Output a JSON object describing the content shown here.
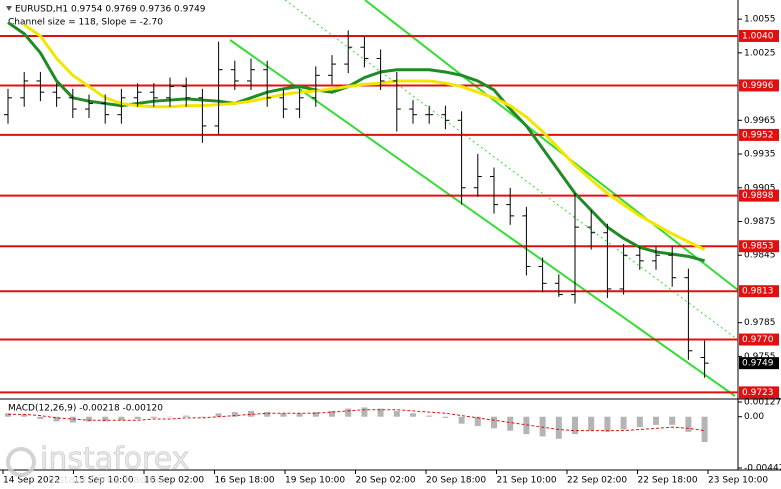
{
  "chart_data": [
    {
      "type": "ohlc",
      "title": "EURUSD,H1  0.9754 0.9769 0.9736 0.9749",
      "subtitle": "Channel size = 118, Slope = -2.70",
      "open": [
        0.997,
        0.9985,
        1.0,
        0.999,
        0.9985,
        0.9975,
        0.998,
        0.997,
        0.9985,
        0.999,
        0.9985,
        0.9995,
        0.9985,
        0.996,
        1.001,
        1.0,
        1.001,
        0.9985,
        0.9975,
        0.9985,
        1.0005,
        1.0015,
        1.003,
        1.002,
        1.0,
        0.9975,
        0.997,
        0.997,
        0.9965,
        0.9905,
        0.9915,
        0.989,
        0.988,
        0.9835,
        0.982,
        0.981,
        0.987,
        0.9865,
        0.9815,
        0.9845,
        0.984,
        0.9845,
        0.9825,
        0.9754
      ],
      "high": [
        0.9993,
        1.0008,
        1.0008,
        0.9998,
        0.9993,
        0.9988,
        0.9988,
        0.9993,
        0.9998,
        0.9998,
        1.0003,
        1.0003,
        0.9993,
        1.0035,
        1.0018,
        1.002,
        1.0018,
        0.9993,
        0.9993,
        1.0013,
        1.0023,
        1.0045,
        1.004,
        1.0028,
        1.0008,
        0.9983,
        0.9978,
        0.9978,
        0.9973,
        0.9935,
        0.9923,
        0.9905,
        0.9888,
        0.9843,
        0.9828,
        0.99,
        0.9885,
        0.9873,
        0.9855,
        0.9853,
        0.9853,
        0.9853,
        0.9833,
        0.9769
      ],
      "low": [
        0.9962,
        0.9977,
        0.9982,
        0.9977,
        0.9967,
        0.9967,
        0.9962,
        0.9962,
        0.9977,
        0.9977,
        0.9977,
        0.9977,
        0.9945,
        0.9952,
        0.9992,
        0.9992,
        0.9977,
        0.9967,
        0.9967,
        0.9977,
        0.9997,
        1.0007,
        1.0012,
        0.9992,
        0.9955,
        0.9962,
        0.9962,
        0.9957,
        0.989,
        0.9897,
        0.9882,
        0.9872,
        0.9827,
        0.9812,
        0.9808,
        0.9802,
        0.985,
        0.9807,
        0.981,
        0.9832,
        0.9832,
        0.9817,
        0.9752,
        0.9736
      ],
      "close": [
        0.9985,
        1.0,
        0.999,
        0.9985,
        0.9975,
        0.998,
        0.997,
        0.9985,
        0.999,
        0.9985,
        0.9995,
        0.9985,
        0.996,
        1.001,
        1.0,
        1.001,
        0.9985,
        0.9975,
        0.9985,
        1.0005,
        1.0015,
        1.003,
        1.002,
        1.0,
        0.9975,
        0.997,
        0.997,
        0.9965,
        0.9905,
        0.9915,
        0.989,
        0.988,
        0.9835,
        0.982,
        0.981,
        0.987,
        0.9865,
        0.9815,
        0.9845,
        0.984,
        0.9845,
        0.9825,
        0.976,
        0.9749
      ],
      "color": "#000000",
      "moving_averages": [
        {
          "color": "#1f8b24",
          "values": [
            1.0052,
            1.0042,
            1.0025,
            1.0,
            0.9985,
            0.9982,
            0.998,
            0.9978,
            0.998,
            0.9982,
            0.9983,
            0.9984,
            0.9983,
            0.9982,
            0.998,
            0.9985,
            0.999,
            0.9993,
            0.9995,
            0.9992,
            0.999,
            0.9995,
            1.0003,
            1.0008,
            1.001,
            1.001,
            1.001,
            1.0008,
            1.0005,
            1.0,
            0.9992,
            0.9975,
            0.996,
            0.994,
            0.992,
            0.99,
            0.9885,
            0.987,
            0.986,
            0.9852,
            0.9848,
            0.9846,
            0.9844,
            0.984
          ]
        },
        {
          "color": "#f2e600",
          "values": [
            null,
            1.005,
            1.004,
            1.002,
            1.0005,
            0.9995,
            0.9985,
            0.998,
            0.9978,
            0.9977,
            0.9977,
            0.9978,
            0.9978,
            0.9979,
            0.998,
            0.9982,
            0.9985,
            0.9988,
            0.999,
            0.9991,
            0.9993,
            0.9995,
            0.9997,
            0.9998,
            1.0,
            1.0,
            1.0,
            0.9998,
            0.9995,
            0.999,
            0.9985,
            0.9978,
            0.9968,
            0.9955,
            0.994,
            0.9925,
            0.9912,
            0.99,
            0.989,
            0.988,
            0.9872,
            0.9864,
            0.9857,
            0.985
          ]
        }
      ],
      "levels": [
        {
          "value": 1.004,
          "label": "1.0040"
        },
        0.9996,
        0.9952,
        0.9898,
        0.9853,
        0.9813,
        {
          "value": 0.977,
          "label": "0.9770"
        },
        0.9723
      ],
      "level_color": "#e01010",
      "last_price": 0.9749,
      "ylim": [
        0.9718,
        1.0072
      ],
      "yticks": [
        1.0055,
        1.0025,
        0.9965,
        0.9935,
        0.9905,
        0.9875,
        0.9845,
        0.9785,
        0.9755
      ],
      "xticklabels": [
        "14 Sep 2022",
        "15 Sep 10:00",
        "16 Sep 02:00",
        "16 Sep 18:00",
        "19 Sep 10:00",
        "20 Sep 02:00",
        "20 Sep 18:00",
        "21 Sep 10:00",
        "22 Sep 02:00",
        "22 Sep 18:00",
        "23 Sep 10:00"
      ],
      "watermark": "instaforex",
      "watermark_sub": "Instant Forex Trading"
    },
    {
      "type": "macd",
      "title": "MACD(12,26,9) -0.00218 -0.00120",
      "values": [
        0.0003,
        0.0002,
        -0.0002,
        -0.0004,
        -0.0005,
        -0.0004,
        -0.0004,
        -0.0003,
        -0.0002,
        -0.0001,
        0.0,
        0.0001,
        0.0,
        0.0003,
        0.0004,
        0.0005,
        0.0004,
        0.0003,
        0.0003,
        0.0004,
        0.0005,
        0.0007,
        0.0008,
        0.0007,
        0.0005,
        0.0003,
        0.0001,
        -0.0001,
        -0.0006,
        -0.0008,
        -0.001,
        -0.0012,
        -0.0015,
        -0.0017,
        -0.0019,
        -0.0015,
        -0.0012,
        -0.0013,
        -0.0011,
        -0.0009,
        -0.0007,
        -0.0007,
        -0.0013,
        -0.00218
      ],
      "signal": [
        0.0002,
        0.0002,
        0.0001,
        -0.0001,
        -0.0002,
        -0.0003,
        -0.0003,
        -0.0003,
        -0.0003,
        -0.0002,
        -0.0002,
        -0.0001,
        -0.0001,
        0.0,
        0.0001,
        0.0002,
        0.0003,
        0.0003,
        0.0003,
        0.0003,
        0.0004,
        0.0005,
        0.0006,
        0.0006,
        0.0006,
        0.0005,
        0.0004,
        0.0003,
        0.0001,
        -0.0001,
        -0.0003,
        -0.0005,
        -0.0007,
        -0.0009,
        -0.0011,
        -0.0012,
        -0.0012,
        -0.0012,
        -0.0012,
        -0.0011,
        -0.001,
        -0.0009,
        -0.001,
        -0.0012
      ],
      "color": "#b4b4b4",
      "signal_color": "#e01010",
      "ylim": [
        -0.00442,
        0.00127
      ],
      "yticks": [
        0.00127,
        {
          "value": 0,
          "label": "0.00"
        },
        -0.00442
      ]
    }
  ]
}
